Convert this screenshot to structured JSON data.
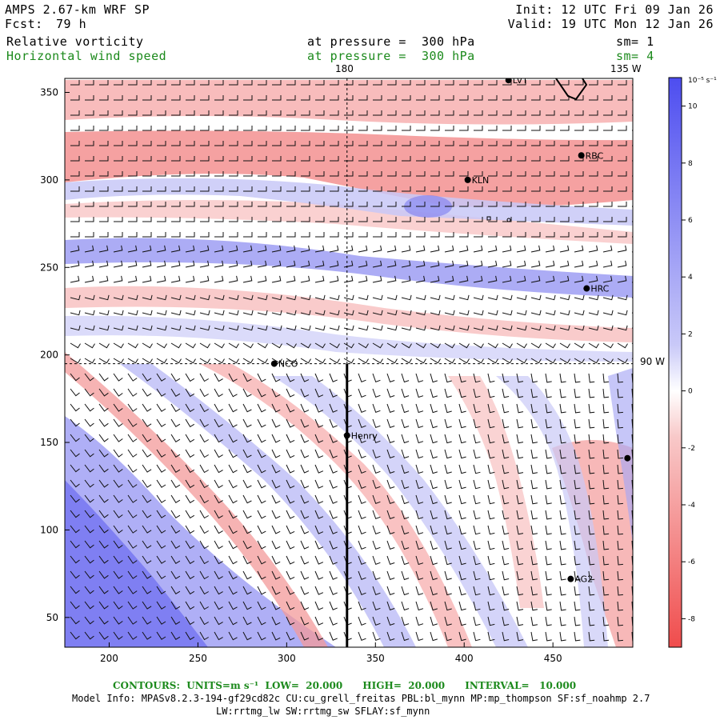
{
  "header": {
    "model": "AMPS 2.67-km WRF SP",
    "fcst_label": "Fcst:",
    "fcst_value": "79 h",
    "init": "Init: 12 UTC Fri 09 Jan 26",
    "valid": "Valid: 19 UTC Mon 12 Jan 26",
    "field1": "Relative vorticity",
    "field1_level": "at pressure =  300 hPa",
    "field1_sm": "sm= 1",
    "field2": "Horizontal wind speed",
    "field2_level": "at pressure =  300 hPa",
    "field2_sm": "sm= 4"
  },
  "map_labels": {
    "meridian_180": "180",
    "meridian_135w": "135 W",
    "parallel_90w": "90 W"
  },
  "stations": [
    {
      "name": "LVT",
      "x": 425,
      "y": 357
    },
    {
      "name": "RBC",
      "x": 466,
      "y": 314
    },
    {
      "name": "KLN",
      "x": 402,
      "y": 300
    },
    {
      "name": "HRC",
      "x": 469,
      "y": 238
    },
    {
      "name": "NCO",
      "x": 293,
      "y": 195
    },
    {
      "name": "Henry",
      "x": 334,
      "y": 154
    },
    {
      "name": "AG2",
      "x": 460,
      "y": 72
    },
    {
      "name": "",
      "x": 492,
      "y": 141
    }
  ],
  "chart_data": {
    "type": "heatmap",
    "title": "Relative vorticity",
    "overlay": "Horizontal wind speed (barbs)",
    "xlabel": "",
    "ylabel": "",
    "xlim": [
      175,
      495
    ],
    "ylim": [
      33,
      358
    ],
    "x_ticks": [
      "200",
      "250",
      "300",
      "350",
      "400",
      "450"
    ],
    "x_tick_values": [
      200,
      250,
      300,
      350,
      400,
      450
    ],
    "y_ticks": [
      "350",
      "300",
      "250",
      "200",
      "150",
      "100",
      "50"
    ],
    "y_tick_values": [
      350,
      300,
      250,
      200,
      150,
      100,
      50
    ],
    "colorbar": {
      "unit": "10⁻⁵ s⁻¹",
      "ticks": [
        "10",
        "8",
        "6",
        "4",
        "2",
        "0",
        "-2",
        "-4",
        "-6",
        "-8"
      ],
      "tick_values": [
        10,
        8,
        6,
        4,
        2,
        0,
        -2,
        -4,
        -6,
        -8
      ],
      "range": [
        -9,
        11
      ],
      "positive_color": "#5a5af0",
      "zero_color": "#ffffff",
      "negative_color": "#f05050"
    },
    "crosshair": {
      "x": 334,
      "y": 195
    },
    "section_line": {
      "x": 334,
      "y_from": 33,
      "y_to": 195
    }
  },
  "footer": {
    "contours": "CONTOURS:  UNITS=m s⁻¹  LOW=  20.000      HIGH=  20.000      INTERVAL=   10.000",
    "model_info": "Model Info: MPASv8.2.3-194-gf29cd82c CU:cu_grell_freitas PBL:bl_mynn MP:mp_thompson SF:sf_noahmp 2.7",
    "model_info2": "LW:rrtmg_lw SW:rrtmg_sw SFLAY:sf_mynn"
  }
}
